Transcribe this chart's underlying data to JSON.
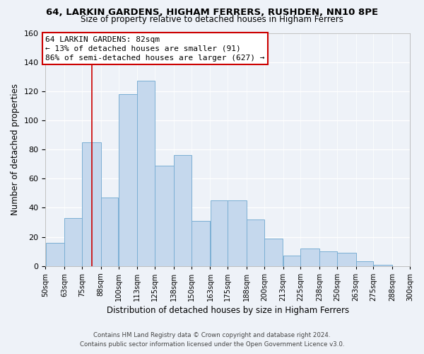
{
  "title": "64, LARKIN GARDENS, HIGHAM FERRERS, RUSHDEN, NN10 8PE",
  "subtitle": "Size of property relative to detached houses in Higham Ferrers",
  "xlabel": "Distribution of detached houses by size in Higham Ferrers",
  "ylabel": "Number of detached properties",
  "footer_line1": "Contains HM Land Registry data © Crown copyright and database right 2024.",
  "footer_line2": "Contains public sector information licensed under the Open Government Licence v3.0.",
  "bar_color": "#c5d8ed",
  "bar_edge_color": "#7bafd4",
  "background_color": "#eef2f8",
  "annotation_box_color": "#ffffff",
  "annotation_border_color": "#cc0000",
  "marker_line_color": "#cc0000",
  "marker_value": 82,
  "bins": [
    50,
    63,
    75,
    88,
    100,
    113,
    125,
    138,
    150,
    163,
    175,
    188,
    200,
    213,
    225,
    238,
    250,
    263,
    275,
    288,
    300
  ],
  "counts": [
    16,
    33,
    85,
    47,
    118,
    127,
    69,
    76,
    31,
    45,
    45,
    32,
    19,
    7,
    12,
    10,
    9,
    3,
    1,
    0
  ],
  "tick_labels": [
    "50sqm",
    "63sqm",
    "75sqm",
    "88sqm",
    "100sqm",
    "113sqm",
    "125sqm",
    "138sqm",
    "150sqm",
    "163sqm",
    "175sqm",
    "188sqm",
    "200sqm",
    "213sqm",
    "225sqm",
    "238sqm",
    "250sqm",
    "263sqm",
    "275sqm",
    "288sqm",
    "300sqm"
  ],
  "annotation_title": "64 LARKIN GARDENS: 82sqm",
  "annotation_line1": "← 13% of detached houses are smaller (91)",
  "annotation_line2": "86% of semi-detached houses are larger (627) →",
  "ylim": [
    0,
    160
  ],
  "yticks": [
    0,
    20,
    40,
    60,
    80,
    100,
    120,
    140,
    160
  ]
}
